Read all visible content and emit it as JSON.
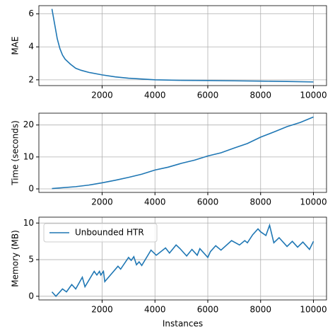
{
  "chart_data": [
    {
      "type": "line",
      "ylabel": "MAE",
      "color": "#1f77b4",
      "grid": true,
      "x": [
        100,
        200,
        300,
        400,
        500,
        600,
        800,
        1000,
        1200,
        1500,
        2000,
        2500,
        3000,
        3500,
        4000,
        5000,
        6000,
        7000,
        8000,
        9000,
        10000
      ],
      "values": [
        6.3,
        5.4,
        4.5,
        3.9,
        3.5,
        3.25,
        2.95,
        2.7,
        2.58,
        2.45,
        2.3,
        2.18,
        2.1,
        2.05,
        2.0,
        1.97,
        1.96,
        1.94,
        1.92,
        1.9,
        1.87
      ],
      "xlim": [
        -395,
        10495
      ],
      "xticks": [
        2000,
        4000,
        6000,
        8000,
        10000
      ],
      "ylim": [
        1.65,
        6.5
      ],
      "yticks": [
        2,
        4,
        6
      ]
    },
    {
      "type": "line",
      "ylabel": "Time (seconds)",
      "color": "#1f77b4",
      "grid": true,
      "x": [
        100,
        1000,
        1500,
        2000,
        2500,
        3000,
        3500,
        4000,
        4500,
        5000,
        5500,
        6000,
        6500,
        7000,
        7500,
        8000,
        8500,
        9000,
        9500,
        10000
      ],
      "values": [
        0.1,
        0.7,
        1.2,
        1.9,
        2.7,
        3.6,
        4.6,
        5.9,
        6.8,
        8.0,
        9.0,
        10.3,
        11.3,
        12.8,
        14.2,
        16.2,
        17.8,
        19.5,
        20.8,
        22.5
      ],
      "xlim": [
        -395,
        10495
      ],
      "xticks": [
        2000,
        4000,
        6000,
        8000,
        10000
      ],
      "ylim": [
        -1.1,
        23.7
      ],
      "yticks": [
        0,
        10,
        20
      ]
    },
    {
      "type": "line",
      "ylabel": "Memory (MB)",
      "xlabel": "Instances",
      "grid": true,
      "legend": "upper left",
      "x": [
        100,
        250,
        500,
        650,
        850,
        1000,
        1250,
        1350,
        1700,
        1800,
        1900,
        1950,
        2050,
        2100,
        2600,
        2700,
        3000,
        3100,
        3200,
        3300,
        3400,
        3500,
        3850,
        4050,
        4400,
        4550,
        4800,
        4950,
        5200,
        5400,
        5600,
        5700,
        6000,
        6100,
        6300,
        6500,
        6900,
        7200,
        7400,
        7500,
        7700,
        7900,
        8000,
        8200,
        8340,
        8500,
        8700,
        9000,
        9200,
        9400,
        9600,
        9850,
        10000
      ],
      "series": [
        {
          "name": "Unbounded HTR",
          "color": "#1f77b4",
          "values": [
            0.6,
            0,
            1.0,
            0.6,
            1.6,
            1.0,
            2.6,
            1.3,
            3.4,
            2.9,
            3.4,
            2.9,
            3.4,
            2.0,
            4.1,
            3.7,
            5.3,
            4.9,
            5.4,
            4.3,
            4.7,
            4.2,
            6.3,
            5.6,
            6.6,
            5.9,
            7.0,
            6.5,
            5.5,
            6.4,
            5.6,
            6.5,
            5.3,
            6.1,
            6.9,
            6.3,
            7.6,
            7.0,
            7.6,
            7.3,
            8.4,
            9.2,
            8.8,
            8.3,
            9.7,
            7.3,
            8.0,
            6.8,
            7.5,
            6.7,
            7.4,
            6.4,
            7.5
          ]
        }
      ],
      "xlim": [
        -395,
        10495
      ],
      "xticks": [
        2000,
        4000,
        6000,
        8000,
        10000
      ],
      "ylim": [
        -0.5,
        10.8
      ],
      "yticks": [
        0,
        5,
        10
      ]
    }
  ]
}
